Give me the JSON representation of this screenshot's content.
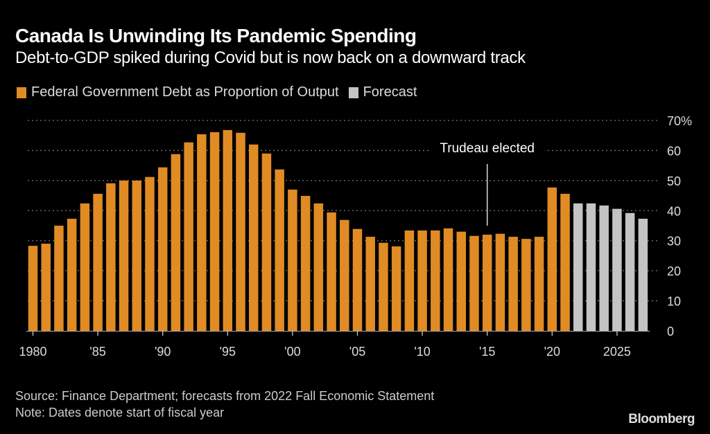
{
  "header": {
    "title": "Canada Is Unwinding Its Pandemic Spending",
    "subtitle": "Debt-to-GDP spiked during Covid but is now back on a downward track"
  },
  "legend": [
    {
      "label": "Federal Government Debt as Proportion of Output",
      "color": "#E08B24"
    },
    {
      "label": "Forecast",
      "color": "#C4C4C4"
    }
  ],
  "footer": {
    "source": "Source: Finance Department; forecasts from 2022 Fall Economic Statement",
    "note": "Note: Dates denote start of fiscal year",
    "logo": "Bloomberg"
  },
  "chart_data": {
    "type": "bar",
    "title": "Canada Is Unwinding Its Pandemic Spending",
    "subtitle": "Debt-to-GDP spiked during Covid but is now back on a downward track",
    "xlabel": "",
    "ylabel": "",
    "ylim": [
      0,
      70
    ],
    "yticks": [
      0,
      10,
      20,
      30,
      40,
      50,
      60,
      70
    ],
    "ytick_labels": [
      "0",
      "10",
      "20",
      "30",
      "40",
      "50",
      "60",
      "70%"
    ],
    "xticks": [
      1980,
      1985,
      1990,
      1995,
      2000,
      2005,
      2010,
      2015,
      2020,
      2025
    ],
    "xtick_labels": [
      "1980",
      "'85",
      "'90",
      "'95",
      "'00",
      "'05",
      "'10",
      "'15",
      "'20",
      "2025"
    ],
    "grid": true,
    "legend_position": "top-left",
    "colors": {
      "actual": "#E08B24",
      "forecast": "#C4C4C4"
    },
    "categories": [
      1980,
      1981,
      1982,
      1983,
      1984,
      1985,
      1986,
      1987,
      1988,
      1989,
      1990,
      1991,
      1992,
      1993,
      1994,
      1995,
      1996,
      1997,
      1998,
      1999,
      2000,
      2001,
      2002,
      2003,
      2004,
      2005,
      2006,
      2007,
      2008,
      2009,
      2010,
      2011,
      2012,
      2013,
      2014,
      2015,
      2016,
      2017,
      2018,
      2019,
      2020,
      2021,
      2022,
      2023,
      2024,
      2025,
      2026,
      2027
    ],
    "series": [
      {
        "name": "Federal Government Debt as Proportion of Output",
        "values": [
          28.3,
          29.0,
          35.0,
          37.3,
          42.4,
          45.6,
          49.1,
          50.0,
          50.0,
          51.2,
          54.4,
          58.8,
          62.7,
          65.4,
          66.1,
          66.8,
          65.9,
          62.0,
          59.0,
          53.7,
          47.0,
          44.9,
          42.4,
          39.4,
          36.9,
          33.9,
          31.3,
          29.3,
          28.1,
          33.4,
          33.4,
          33.4,
          34.1,
          33.0,
          31.6,
          32.0,
          32.3,
          31.3,
          30.6,
          31.3,
          47.7,
          45.6,
          null,
          null,
          null,
          null,
          null,
          null
        ]
      },
      {
        "name": "Forecast",
        "values": [
          null,
          null,
          null,
          null,
          null,
          null,
          null,
          null,
          null,
          null,
          null,
          null,
          null,
          null,
          null,
          null,
          null,
          null,
          null,
          null,
          null,
          null,
          null,
          null,
          null,
          null,
          null,
          null,
          null,
          null,
          null,
          null,
          null,
          null,
          null,
          null,
          null,
          null,
          null,
          null,
          null,
          null,
          42.4,
          42.4,
          41.7,
          40.6,
          39.2,
          37.3
        ]
      }
    ],
    "annotations": [
      {
        "text": "Trudeau elected",
        "x": 2015
      }
    ]
  }
}
